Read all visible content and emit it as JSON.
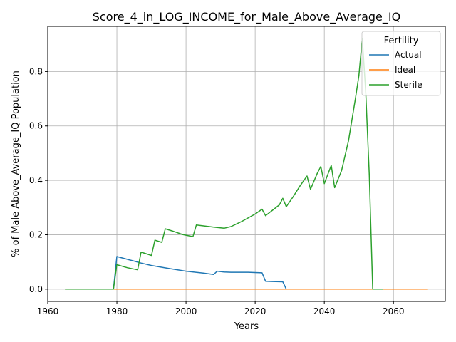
{
  "chart_data": {
    "type": "line",
    "title": "Score_4_in_LOG_INCOME_for_Male_Above_Average_IQ",
    "xlabel": "Years",
    "ylabel": "% of Male Above_Average_IQ Population",
    "xlim": [
      1960,
      2075
    ],
    "ylim": [
      -0.045,
      0.966
    ],
    "xticks": [
      1960,
      1980,
      2000,
      2020,
      2040,
      2060
    ],
    "yticks": [
      0.0,
      0.2,
      0.4,
      0.6,
      0.8
    ],
    "ytick_labels": [
      "0.0",
      "0.2",
      "0.4",
      "0.6",
      "0.8"
    ],
    "grid": true,
    "legend": {
      "title": "Fertility",
      "placement": "top-right"
    },
    "series": [
      {
        "name": "Actual",
        "color": "#1f77b4",
        "x": [
          1965,
          1979,
          1980,
          1985,
          1987,
          1990,
          1995,
          2000,
          2005,
          2008,
          2009,
          2011,
          2013,
          2015,
          2018,
          2020,
          2022,
          2023,
          2025,
          2028,
          2029,
          2035,
          2045
        ],
        "y": [
          0.0,
          0.0,
          0.12,
          0.103,
          0.096,
          0.087,
          0.076,
          0.066,
          0.059,
          0.054,
          0.066,
          0.063,
          0.062,
          0.062,
          0.062,
          0.061,
          0.06,
          0.029,
          0.028,
          0.027,
          0.0,
          0.0,
          0.0
        ]
      },
      {
        "name": "Ideal",
        "color": "#ff7f0e",
        "x": [
          1965,
          1980,
          2000,
          2020,
          2040,
          2060,
          2070
        ],
        "y": [
          0.0,
          0.0,
          0.0,
          0.0,
          0.0,
          0.0,
          0.0
        ]
      },
      {
        "name": "Sterile",
        "color": "#2ca02c",
        "x": [
          1965,
          1979,
          1980,
          1983,
          1986,
          1987,
          1990,
          1991,
          1993,
          1994,
          1996,
          1999,
          2002,
          2003,
          2008,
          2011,
          2013,
          2016,
          2020,
          2022,
          2023,
          2025,
          2027,
          2028,
          2029,
          2031,
          2033,
          2035,
          2036,
          2038,
          2039,
          2040,
          2042,
          2043,
          2045,
          2047,
          2049,
          2050,
          2051,
          2052,
          2053,
          2054,
          2055,
          2057
        ],
        "y": [
          0.0,
          0.0,
          0.09,
          0.079,
          0.071,
          0.136,
          0.124,
          0.18,
          0.172,
          0.222,
          0.214,
          0.201,
          0.193,
          0.236,
          0.228,
          0.224,
          0.23,
          0.248,
          0.276,
          0.294,
          0.27,
          0.29,
          0.31,
          0.334,
          0.303,
          0.34,
          0.38,
          0.416,
          0.367,
          0.427,
          0.451,
          0.388,
          0.455,
          0.373,
          0.436,
          0.545,
          0.7,
          0.785,
          0.922,
          0.72,
          0.42,
          0.0,
          0.0,
          0.0
        ]
      }
    ]
  }
}
